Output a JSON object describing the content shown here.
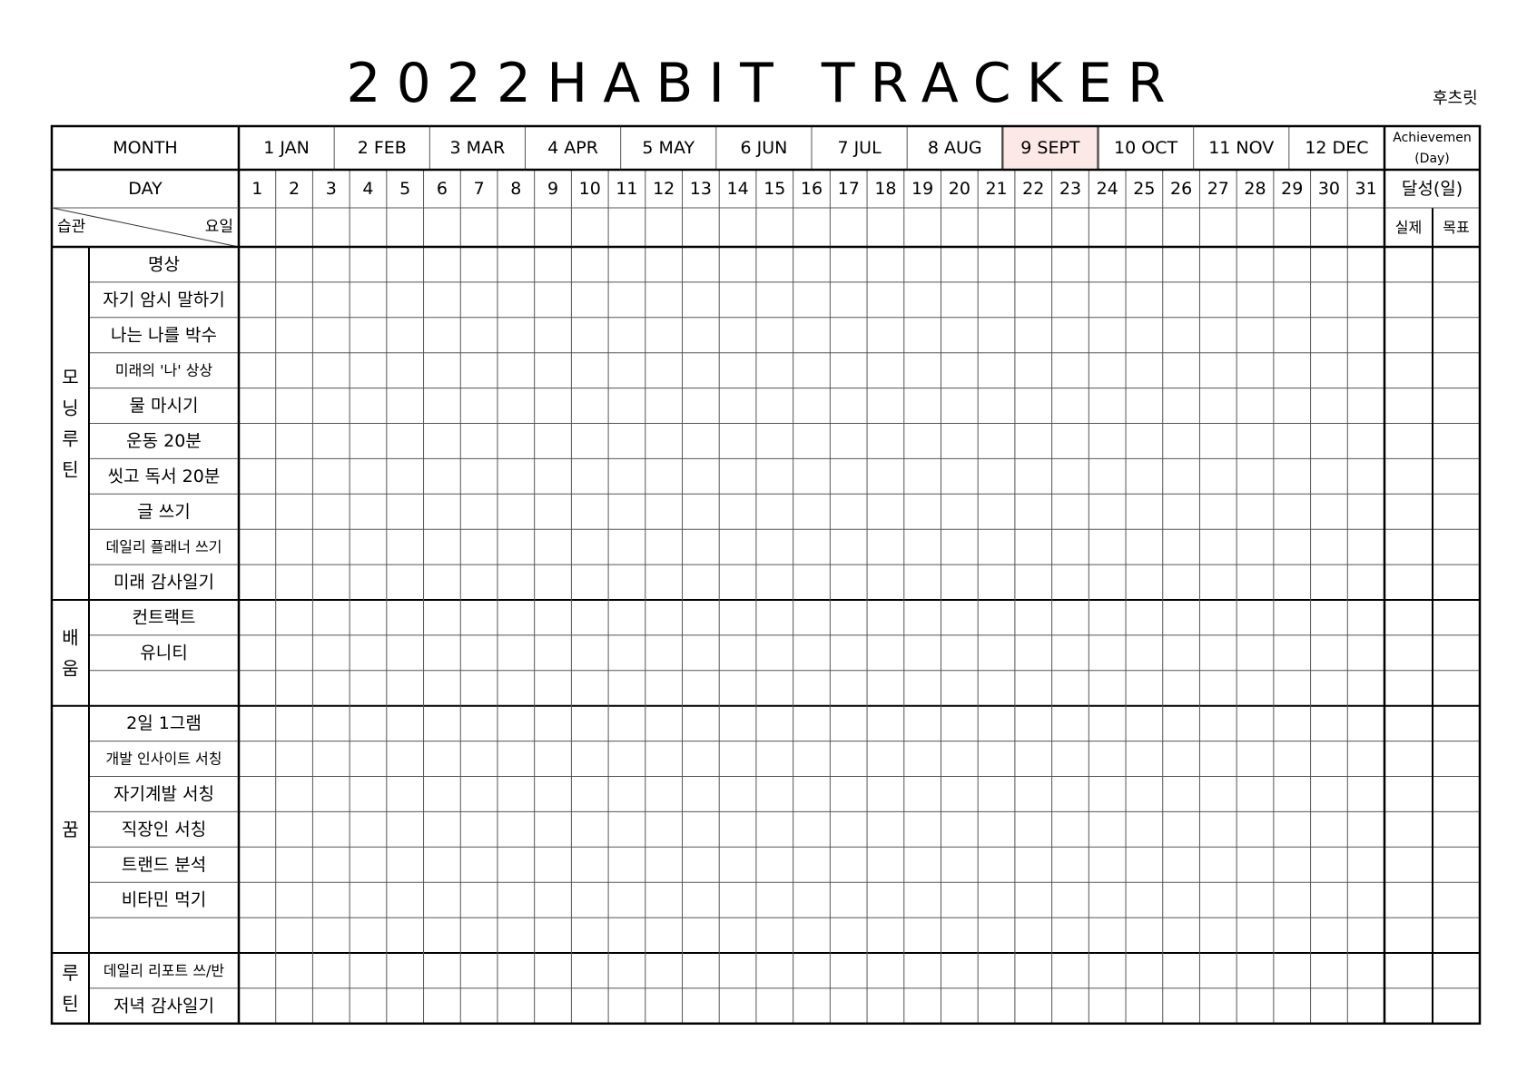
{
  "header": {
    "title": "2022HABIT TRACKER",
    "author": "후츠릿"
  },
  "table": {
    "month_label": "MONTH",
    "months": [
      "1 JAN",
      "2 FEB",
      "3 MAR",
      "4 APR",
      "5 MAY",
      "6 JUN",
      "7 JUL",
      "8 AUG",
      "9 SEPT",
      "10 OCT",
      "11 NOV",
      "12 DEC"
    ],
    "selected_month_index": 8,
    "achievement_label": "Achievemen",
    "achievement_sub": "(Day)",
    "day_label": "DAY",
    "days": [
      "1",
      "2",
      "3",
      "4",
      "5",
      "6",
      "7",
      "8",
      "9",
      "10",
      "11",
      "12",
      "13",
      "14",
      "15",
      "16",
      "17",
      "18",
      "19",
      "20",
      "21",
      "22",
      "23",
      "24",
      "25",
      "26",
      "27",
      "28",
      "29",
      "30",
      "31"
    ],
    "achievement_korean": "달성(일)",
    "habit_label": "습관",
    "weekday_label": "요일",
    "actual_label": "실제",
    "goal_label": "목표",
    "groups": [
      {
        "name": "모닝루틴",
        "habits": [
          "명상",
          "자기 암시 말하기",
          "나는 나를 박수",
          "미래의 '나' 상상",
          "물 마시기",
          "운동 20분",
          "씻고 독서 20분",
          "글 쓰기",
          "데일리 플래너 쓰기",
          "미래 감사일기"
        ]
      },
      {
        "name": "배움",
        "habits": [
          "컨트랙트",
          "유니티",
          ""
        ]
      },
      {
        "name": "꿈",
        "habits": [
          "2일 1그램",
          "개발 인사이트 서칭",
          "자기계발 서칭",
          "직장인 서칭",
          "트랜드 분석",
          "비타민 먹기",
          ""
        ]
      },
      {
        "name": "루틴",
        "habits": [
          "데일리 리포트 쓰/반",
          "저녁 감사일기"
        ]
      }
    ]
  },
  "colors": {
    "selected_month_fill": "#fde8e8",
    "grid_line": "#555555",
    "border": "#000000"
  }
}
